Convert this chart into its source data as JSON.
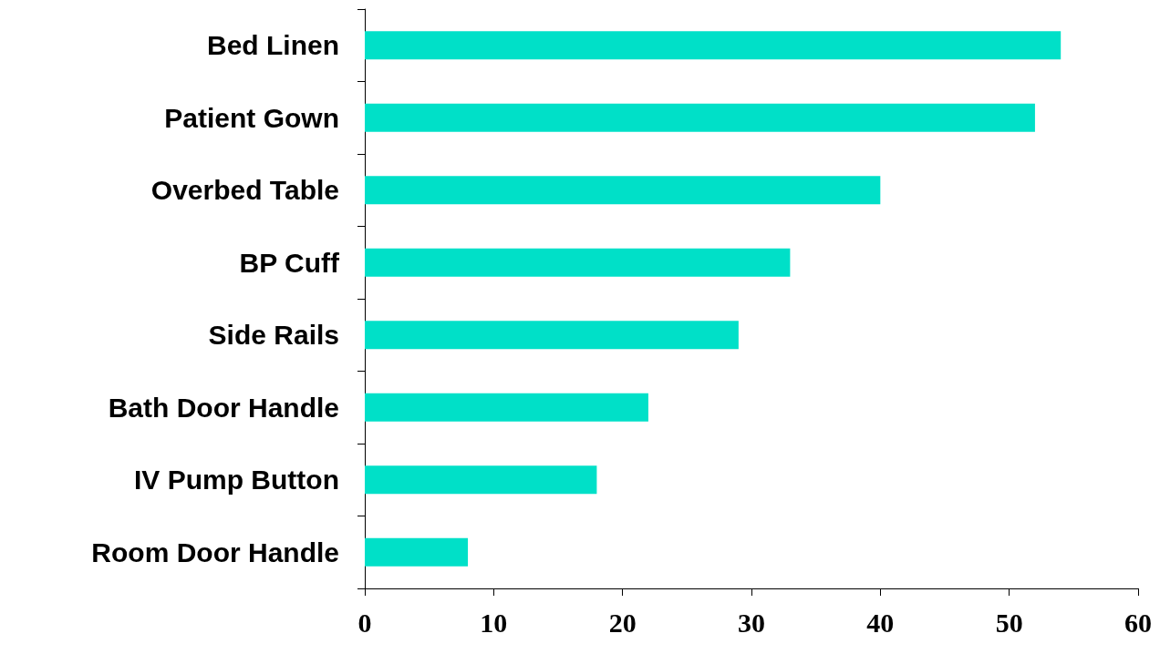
{
  "chart_data": {
    "type": "bar",
    "orientation": "horizontal",
    "categories": [
      "Bed Linen",
      "Patient Gown",
      "Overbed Table",
      "BP Cuff",
      "Side Rails",
      "Bath Door Handle",
      "IV Pump Button",
      "Room Door Handle"
    ],
    "values": [
      54,
      52,
      40,
      33,
      29,
      22,
      18,
      8
    ],
    "color": "#00e0c8",
    "xlim": [
      0,
      60
    ],
    "xticks": [
      0,
      10,
      20,
      30,
      40,
      50,
      60
    ]
  }
}
